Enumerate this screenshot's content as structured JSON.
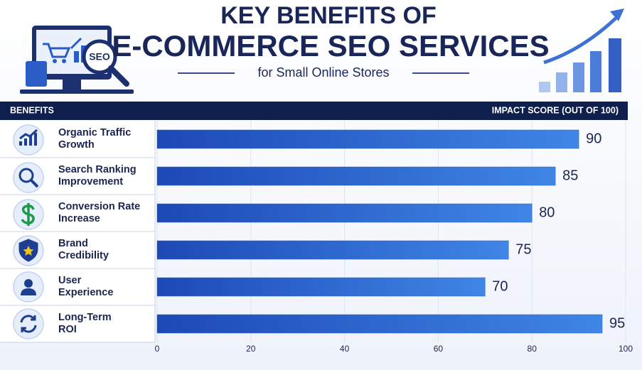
{
  "header": {
    "title_top": "KEY BENEFITS OF",
    "title": "E-COMMERCE SEO SERVICES",
    "subtitle": "for Small Online Stores",
    "illustration_label": "SEO"
  },
  "chart_data": {
    "type": "bar",
    "orientation": "horizontal",
    "category_header": "BENEFITS",
    "value_header": "IMPACT SCORE (OUT OF 100)",
    "categories": [
      "Organic Traffic\nGrowth",
      "Search Ranking\nImprovement",
      "Conversion Rate\nIncrease",
      "Brand\nCredibility",
      "User\nExperience",
      "Long-Term\nROI"
    ],
    "values": [
      90,
      85,
      80,
      75,
      70,
      95
    ],
    "color": "#2a62d0",
    "xlim": [
      0,
      100
    ],
    "xticks": [
      0,
      20,
      40,
      60,
      80,
      100
    ],
    "grid": true
  }
}
